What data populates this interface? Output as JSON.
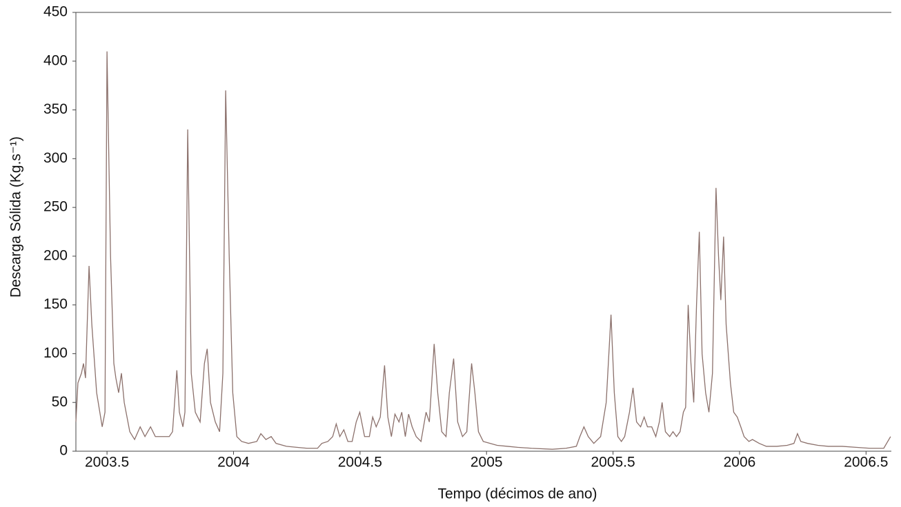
{
  "chart_data": {
    "type": "line",
    "x_label": "Tempo (décimos de ano)",
    "y_label": "Descarga Sólida (Kg.s⁻¹)",
    "xlim": [
      2003.377,
      2006.6
    ],
    "ylim": [
      0,
      450
    ],
    "xticks": [
      2003.5,
      2004,
      2004.5,
      2005,
      2005.5,
      2006,
      2006.5
    ],
    "yticks": [
      0,
      50,
      100,
      150,
      200,
      250,
      300,
      350,
      400,
      450
    ],
    "x": [
      2003.377,
      2003.385,
      2003.399,
      2003.407,
      2003.415,
      2003.429,
      2003.44,
      2003.459,
      2003.481,
      2003.492,
      2003.5,
      2003.514,
      2003.527,
      2003.535,
      2003.546,
      2003.557,
      2003.568,
      2003.59,
      2003.609,
      2003.631,
      2003.65,
      2003.672,
      2003.691,
      2003.718,
      2003.746,
      2003.759,
      2003.776,
      2003.786,
      2003.8,
      2003.808,
      2003.819,
      2003.833,
      2003.849,
      2003.868,
      2003.885,
      2003.896,
      2003.909,
      2003.928,
      2003.945,
      2003.958,
      2003.969,
      2003.983,
      2003.997,
      2004.013,
      2004.032,
      2004.059,
      2004.092,
      2004.108,
      2004.128,
      2004.149,
      2004.168,
      2004.209,
      2004.25,
      2004.291,
      2004.332,
      2004.349,
      2004.373,
      2004.392,
      2004.406,
      2004.42,
      2004.436,
      2004.452,
      2004.469,
      2004.485,
      2004.499,
      2004.518,
      2004.537,
      2004.55,
      2004.564,
      2004.58,
      2004.597,
      2004.61,
      2004.624,
      2004.638,
      2004.654,
      2004.665,
      2004.679,
      2004.692,
      2004.706,
      2004.722,
      2004.741,
      2004.761,
      2004.774,
      2004.793,
      2004.807,
      2004.823,
      2004.84,
      2004.853,
      2004.87,
      2004.886,
      2004.905,
      2004.922,
      2004.941,
      2004.954,
      2004.968,
      2004.987,
      2005.014,
      2005.042,
      2005.083,
      2005.123,
      2005.178,
      2005.26,
      2005.314,
      2005.355,
      2005.369,
      2005.385,
      2005.402,
      2005.424,
      2005.451,
      2005.473,
      2005.492,
      2005.505,
      2005.519,
      2005.533,
      2005.546,
      2005.565,
      2005.579,
      2005.593,
      2005.609,
      2005.623,
      2005.636,
      2005.653,
      2005.669,
      2005.683,
      2005.694,
      2005.707,
      2005.724,
      2005.737,
      2005.751,
      2005.765,
      2005.778,
      2005.787,
      2005.797,
      2005.808,
      2005.819,
      2005.83,
      2005.841,
      2005.852,
      2005.866,
      2005.879,
      2005.893,
      2005.907,
      2005.917,
      2005.926,
      2005.937,
      2005.947,
      2005.964,
      2005.977,
      2005.991,
      2006.005,
      2006.018,
      2006.037,
      2006.051,
      2006.078,
      2006.106,
      2006.147,
      2006.188,
      2006.215,
      2006.229,
      2006.242,
      2006.269,
      2006.31,
      2006.351,
      2006.406,
      2006.46,
      2006.515,
      2006.57,
      2006.597
    ],
    "series": [
      {
        "color": "#8b706b",
        "values": [
          30,
          70,
          80,
          90,
          75,
          190,
          130,
          60,
          25,
          40,
          410,
          200,
          90,
          75,
          60,
          80,
          50,
          20,
          12,
          25,
          15,
          25,
          15,
          15,
          15,
          20,
          83,
          40,
          25,
          40,
          330,
          80,
          40,
          30,
          90,
          105,
          50,
          30,
          20,
          80,
          370,
          200,
          60,
          15,
          10,
          8,
          10,
          18,
          12,
          15,
          8,
          5,
          4,
          3,
          3,
          8,
          10,
          15,
          28,
          15,
          22,
          10,
          10,
          30,
          40,
          15,
          15,
          35,
          25,
          35,
          88,
          35,
          15,
          38,
          30,
          40,
          15,
          38,
          25,
          15,
          10,
          40,
          30,
          110,
          60,
          20,
          15,
          60,
          95,
          30,
          15,
          20,
          90,
          60,
          20,
          10,
          8,
          6,
          5,
          4,
          3,
          2,
          3,
          5,
          15,
          25,
          15,
          8,
          15,
          50,
          140,
          60,
          15,
          10,
          15,
          40,
          65,
          30,
          25,
          35,
          25,
          25,
          15,
          30,
          50,
          20,
          15,
          20,
          15,
          20,
          40,
          45,
          150,
          90,
          50,
          150,
          225,
          100,
          60,
          40,
          80,
          270,
          200,
          155,
          220,
          130,
          70,
          40,
          35,
          25,
          15,
          10,
          12,
          8,
          5,
          5,
          6,
          8,
          18,
          10,
          8,
          6,
          5,
          5,
          4,
          3,
          3,
          15
        ]
      }
    ]
  }
}
